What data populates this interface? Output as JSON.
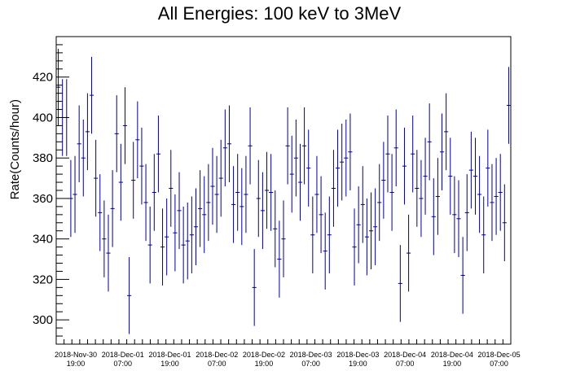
{
  "chart_data": {
    "type": "scatter",
    "title": "All Energies:  100 keV to 3MeV",
    "xlabel": "",
    "ylabel": "Rate(Counts/hour)",
    "ylim": [
      288,
      440
    ],
    "yticks": [
      300,
      320,
      340,
      360,
      380,
      400,
      420
    ],
    "xticks": [
      [
        "2018-Nov-30",
        "19:00"
      ],
      [
        "2018-Dec-01",
        "07:00"
      ],
      [
        "2018-Dec-01",
        "19:00"
      ],
      [
        "2018-Dec-02",
        "07:00"
      ],
      [
        "2018-Dec-02",
        "19:00"
      ],
      [
        "2018-Dec-03",
        "07:00"
      ],
      [
        "2018-Dec-03",
        "19:00"
      ],
      [
        "2018-Dec-04",
        "07:00"
      ],
      [
        "2018-Dec-04",
        "19:00"
      ],
      [
        "2018-Dec-05",
        "07:00"
      ]
    ],
    "x_start": "2018-Nov-30 14:00",
    "x_end": "2018-Dec-05 10:00",
    "bin_hours": 1,
    "marker_color": "#00008b",
    "axis_color": "#000000",
    "grid": false,
    "legend": false,
    "series": [
      {
        "error": 19,
        "values": [
          415,
          400,
          400,
          360,
          362,
          387,
          380,
          393,
          411,
          370,
          353,
          340,
          333,
          355,
          392,
          368,
          396,
          312,
          369,
          389,
          376,
          358,
          337,
          363,
          382,
          336,
          341,
          365,
          343,
          354,
          337,
          339,
          342,
          346,
          355,
          352,
          358,
          366,
          362,
          370,
          385,
          387,
          357,
          363,
          356,
          362,
          386,
          316,
          360,
          354,
          364,
          363,
          345,
          330,
          340,
          386,
          372,
          380,
          368,
          386,
          375,
          342,
          362,
          352,
          334,
          342,
          365,
          375,
          378,
          380,
          383,
          336,
          347,
          357,
          341,
          344,
          346,
          358,
          369,
          382,
          363,
          385,
          318,
          376,
          333,
          382,
          365,
          360,
          371,
          388,
          351,
          361,
          383,
          393,
          371,
          352,
          350,
          322,
          353,
          374,
          371,
          362,
          342,
          375,
          358,
          361,
          363,
          348,
          406
        ]
      }
    ]
  }
}
